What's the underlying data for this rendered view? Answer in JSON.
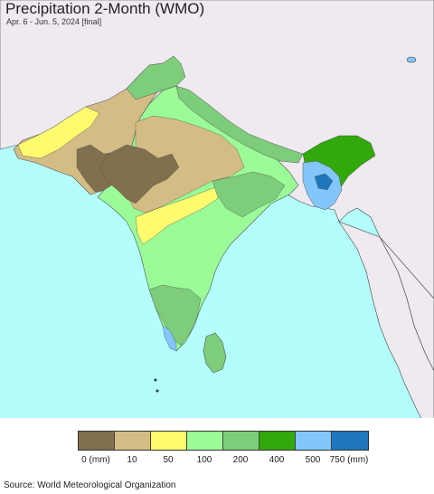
{
  "header": {
    "title": "Precipitation 2-Month (WMO)",
    "subtitle": "Apr. 6 - Jun. 5, 2024 [final]"
  },
  "colors": {
    "ocean": "#b3fdfd",
    "land_outside": "#eeeaf0",
    "border": "#555555"
  },
  "legend": {
    "classes": [
      {
        "color": "#80704d"
      },
      {
        "color": "#d4bd84"
      },
      {
        "color": "#fefb6f"
      },
      {
        "color": "#9afb97"
      },
      {
        "color": "#7dcd7b"
      },
      {
        "color": "#31a90b"
      },
      {
        "color": "#82c6fb"
      },
      {
        "color": "#1e78bb"
      }
    ],
    "ticks": [
      "0 (mm)",
      "10",
      "50",
      "100",
      "200",
      "400",
      "500",
      "750 (mm)"
    ]
  },
  "footer": {
    "source": "Source: World Meteorological Organization"
  }
}
